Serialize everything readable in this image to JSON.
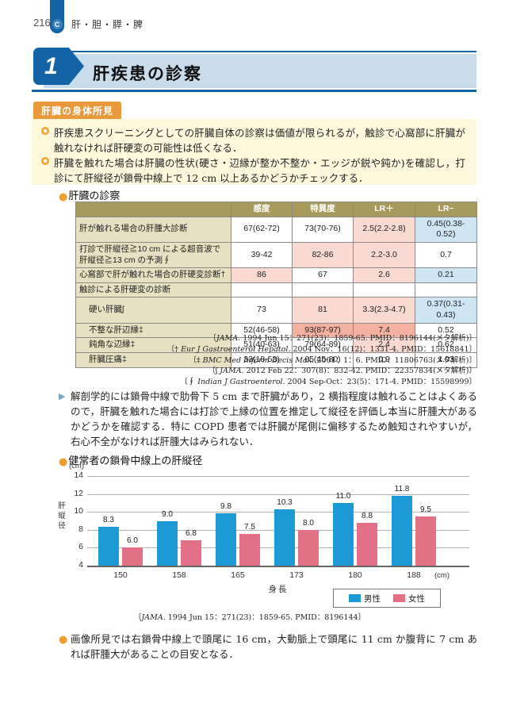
{
  "page": {
    "number": "216",
    "chapter_badge": "C",
    "chapter_title": "肝・胆・膵・脾"
  },
  "section": {
    "number": "1",
    "title": "肝疾患の診察"
  },
  "findings_box": {
    "label": "肝臓の身体所見",
    "bullets": [
      "肝疾患スクリーニングとしての肝臓自体の診察は価値が限られるが，触診で心窩部に肝臓が触れなければ肝硬変の可能性は低くなる．",
      "肝臓を触れた場合は肝臓の性状(硬さ・辺縁が整か不整か・エッジが鋭や鈍か)を確認し，打診にて肝縦径が鎖骨中線上で 12 cm 以上あるかどうかチェックする．"
    ]
  },
  "exam_table": {
    "heading": "肝臓の診察",
    "columns": [
      "感度",
      "特異度",
      "LR＋",
      "LR−"
    ],
    "rows": [
      {
        "label": "肝が触れる場合の肝腫大診断",
        "indent": false,
        "cells": [
          {
            "v": "67(62-72)",
            "bg": "w"
          },
          {
            "v": "73(70-76)",
            "bg": "w"
          },
          {
            "v": "2.5(2.2-2.8)",
            "bg": "p"
          },
          {
            "v": "0.45(0.38-0.52)",
            "bg": "b"
          }
        ]
      },
      {
        "label": "打診で肝縦径≧10 cm による超音波で肝縦径≧13 cm の予測∮",
        "indent": false,
        "cells": [
          {
            "v": "39-42",
            "bg": "w"
          },
          {
            "v": "82-86",
            "bg": "p"
          },
          {
            "v": "2.2-3.0",
            "bg": "p"
          },
          {
            "v": "0.7",
            "bg": "w"
          }
        ]
      },
      {
        "label": "心窩部で肝が触れた場合の肝硬変診断†",
        "indent": false,
        "cells": [
          {
            "v": "86",
            "bg": "p"
          },
          {
            "v": "67",
            "bg": "w"
          },
          {
            "v": "2.6",
            "bg": "p"
          },
          {
            "v": "0.21",
            "bg": "b"
          }
        ]
      },
      {
        "label": "触診による肝硬変の診断",
        "indent": false,
        "cells": [
          {
            "v": "",
            "bg": "w"
          },
          {
            "v": "",
            "bg": "w"
          },
          {
            "v": "",
            "bg": "w"
          },
          {
            "v": "",
            "bg": "w"
          }
        ]
      },
      {
        "label": "硬い肝臓ʃ",
        "indent": true,
        "cells": [
          {
            "v": "73",
            "bg": "w"
          },
          {
            "v": "81",
            "bg": "p"
          },
          {
            "v": "3.3(2.3-4.7)",
            "bg": "p"
          },
          {
            "v": "0.37(0.31-0.43)",
            "bg": "b"
          }
        ]
      },
      {
        "label": "不整な肝辺縁‡",
        "indent": true,
        "cells": [
          {
            "v": "52(46-58)",
            "bg": "w"
          },
          {
            "v": "93(87-97)",
            "bg": "P"
          },
          {
            "v": "7.4",
            "bg": "P"
          },
          {
            "v": "0.52",
            "bg": "w"
          }
        ]
      },
      {
        "label": "鈍角な辺縁‡",
        "indent": true,
        "cells": [
          {
            "v": "51(40-63)",
            "bg": "w"
          },
          {
            "v": "79(64-89)",
            "bg": "w"
          },
          {
            "v": "2.4",
            "bg": "p"
          },
          {
            "v": "0.62",
            "bg": "w"
          }
        ]
      },
      {
        "label": "肝臓圧痛‡",
        "indent": true,
        "cells": [
          {
            "v": "33(18-53)",
            "bg": "w"
          },
          {
            "v": "65(45-80)",
            "bg": "w"
          },
          {
            "v": "0.9",
            "bg": "w"
          },
          {
            "v": "1.03",
            "bg": "w"
          }
        ]
      }
    ],
    "citations": [
      {
        "pre": "〔",
        "journal": "JAMA.",
        "rest": " 1994 Jun 15：271(23)：1859-65. PMID：8196144(メタ解析)〕"
      },
      {
        "pre": "〔† ",
        "journal": "Eur J Gastroenterol Hepatol.",
        "rest": " 2004 Nov：16(12)：1331-4. PMID：15618841〕"
      },
      {
        "pre": "〔‡ ",
        "journal": "BMC Med Inform Decis Mak.",
        "rest": " 2001：1：6. PMID：11806763(メタ解析)〕"
      },
      {
        "pre": "〔ʃ ",
        "journal": "JAMA.",
        "rest": " 2012 Feb 22：307(8)：832-42. PMID：22357834(メタ解析)〕"
      },
      {
        "pre": "〔∮ ",
        "journal": "Indian J Gastroenterol.",
        "rest": " 2004 Sep-Oct：23(5)：171-4. PMID：15598999〕"
      }
    ]
  },
  "anatomy_note": "解剖学的には鎖骨中線で肋骨下 5 cm まで肝臓があり，2 横指程度は触れることはよくあるので，肝臓を触れた場合には打診で上縁の位置を推定して縦径を評価し本当に肝腫大があるかどうかを確認する．特に COPD 患者では肝臓が尾側に偏移するため触知されやすいが，右心不全がなければ肝腫大はみられない．",
  "chart_section": {
    "heading": "健常者の鎖骨中線上の肝縦径",
    "citation": {
      "pre": "〔",
      "journal": "JAMA.",
      "rest": " 1994 Jun 15：271(23)：1859-65. PMID：8196144〕"
    }
  },
  "chart_data": {
    "type": "bar",
    "title": "健常者の鎖骨中線上の肝縦径",
    "categories": [
      "150",
      "158",
      "165",
      "173",
      "180",
      "188"
    ],
    "series": [
      {
        "name": "男性",
        "color": "#1b9ad6",
        "values": [
          8.3,
          9.0,
          9.8,
          10.3,
          11.0,
          11.8
        ]
      },
      {
        "name": "女性",
        "color": "#e27086",
        "values": [
          6.0,
          6.8,
          7.5,
          8.0,
          8.8,
          9.5
        ]
      }
    ],
    "xlabel": "身長",
    "x_unit": "(cm)",
    "ylabel": "肝縦径",
    "y_unit": "(cm)",
    "ylim": [
      4,
      14
    ],
    "yticks": [
      4,
      6,
      8,
      10,
      12,
      14
    ],
    "grid": true,
    "legend_position": "bottom-right"
  },
  "imaging_note": "画像所見では右鎖骨中線上で頭尾に 16 cm，大動脈上で頭尾に 11 cm か腹背に 7 cm あれば肝腫大があることの目安となる．",
  "colors": {
    "accent_blue": "#1264a6",
    "band_blue": "#c9dcec",
    "label_orange": "#e8993b",
    "bullet_orange": "#f09f2e",
    "cream": "#fdf7dc",
    "table_header_olive": "#a79a5d",
    "table_label_tan": "#e7e0c2",
    "cell_pink": "#f9d9d0",
    "cell_dark_pink": "#f4b1a1",
    "cell_blue": "#cee5f4",
    "bar_blue": "#1b9ad6",
    "bar_pink": "#e27086"
  }
}
